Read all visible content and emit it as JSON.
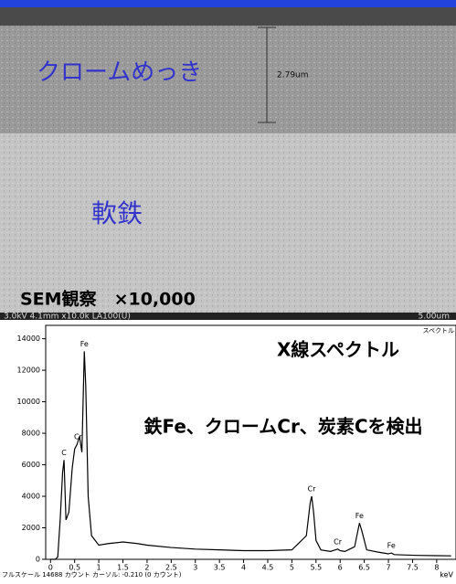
{
  "sem": {
    "coating_label": "クロームめっき",
    "base_label": "軟鉄",
    "thickness": "2.79um",
    "caption": "SEM観察　×10,000",
    "info": "3.0kV 4.1mm x10.0k LA100(U)",
    "scale": "5.00um"
  },
  "chart_data": {
    "type": "line",
    "title": "X線スペクトル",
    "subtitle": "鉄Fe、クロームCr、炭素Cを検出",
    "corner_label": "スペクトル",
    "footer": "フルスケール 14688 カウント カーソル: -0.210  (0 カウント)",
    "x_unit": "keV",
    "x": [
      0,
      0.1,
      0.15,
      0.2,
      0.25,
      0.28,
      0.32,
      0.38,
      0.45,
      0.5,
      0.55,
      0.6,
      0.65,
      0.7,
      0.73,
      0.78,
      0.85,
      1.0,
      1.2,
      1.5,
      1.8,
      2.0,
      2.5,
      3.0,
      3.5,
      4.0,
      4.5,
      5.0,
      5.3,
      5.38,
      5.41,
      5.45,
      5.5,
      5.6,
      5.8,
      5.9,
      5.95,
      6.0,
      6.1,
      6.3,
      6.38,
      6.4,
      6.45,
      6.55,
      6.8,
      7.0,
      7.06,
      7.12,
      7.3,
      7.6,
      8.0,
      8.3
    ],
    "series": [
      {
        "color": "#000000",
        "values": [
          0,
          0,
          150,
          2500,
          5500,
          6300,
          2500,
          3000,
          5800,
          7000,
          7300,
          7800,
          6800,
          13200,
          11000,
          4000,
          1500,
          900,
          1000,
          1100,
          1000,
          900,
          750,
          650,
          600,
          550,
          550,
          600,
          1500,
          3600,
          4000,
          3000,
          1200,
          600,
          500,
          600,
          650,
          550,
          500,
          800,
          2000,
          2300,
          1800,
          600,
          450,
          350,
          400,
          300,
          280,
          250,
          230,
          220
        ]
      }
    ],
    "peaks": [
      {
        "label": "C",
        "x": 0.28,
        "y": 6300
      },
      {
        "label": "Cr",
        "x": 0.57,
        "y": 7300
      },
      {
        "label": "Fe",
        "x": 0.7,
        "y": 13200
      },
      {
        "label": "Cr",
        "x": 5.41,
        "y": 4000
      },
      {
        "label": "Cr",
        "x": 5.95,
        "y": 650
      },
      {
        "label": "Fe",
        "x": 6.4,
        "y": 2300
      },
      {
        "label": "Fe",
        "x": 7.06,
        "y": 400
      }
    ],
    "xlim": [
      -0.1,
      8.4
    ],
    "ylim": [
      0,
      14500
    ],
    "xticks": [
      0,
      0.5,
      1,
      1.5,
      2,
      2.5,
      3,
      3.5,
      4,
      4.5,
      5,
      5.5,
      6,
      6.5,
      7,
      7.5,
      8
    ],
    "yticks": [
      0,
      2000,
      4000,
      6000,
      8000,
      10000,
      12000,
      14000
    ]
  }
}
